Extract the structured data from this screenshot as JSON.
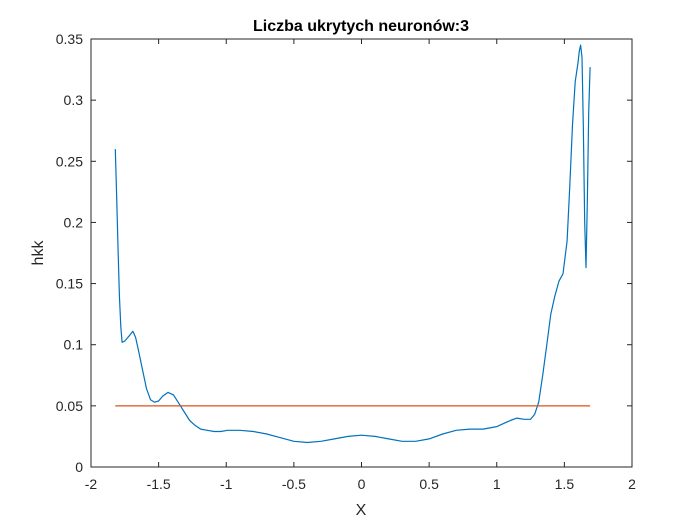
{
  "chart_data": {
    "type": "line",
    "title": "Liczba ukrytych neuronów:3",
    "xlabel": "X",
    "ylabel": "hkk",
    "xlim": [
      -2,
      2
    ],
    "ylim": [
      0,
      0.35
    ],
    "xticks": [
      "-2",
      "-1.5",
      "-1",
      "-0.5",
      "0",
      "0.5",
      "1",
      "1.5",
      "2"
    ],
    "yticks": [
      "0",
      "0.05",
      "0.1",
      "0.15",
      "0.2",
      "0.25",
      "0.3",
      "0.35"
    ],
    "grid": false,
    "legend": "none",
    "series": [
      {
        "color": "#0072BD",
        "x": [
          -1.82,
          -1.81,
          -1.8,
          -1.79,
          -1.78,
          -1.77,
          -1.75,
          -1.72,
          -1.69,
          -1.67,
          -1.65,
          -1.62,
          -1.59,
          -1.56,
          -1.53,
          -1.5,
          -1.47,
          -1.43,
          -1.39,
          -1.35,
          -1.31,
          -1.27,
          -1.23,
          -1.19,
          -1.14,
          -1.09,
          -1.04,
          -0.99,
          -0.9,
          -0.8,
          -0.7,
          -0.6,
          -0.5,
          -0.4,
          -0.3,
          -0.2,
          -0.1,
          0.0,
          0.1,
          0.2,
          0.3,
          0.4,
          0.5,
          0.6,
          0.7,
          0.8,
          0.9,
          1.0,
          1.1,
          1.15,
          1.2,
          1.25,
          1.28,
          1.31,
          1.34,
          1.37,
          1.4,
          1.43,
          1.46,
          1.49,
          1.52,
          1.54,
          1.56,
          1.58,
          1.6,
          1.61,
          1.62,
          1.63,
          1.64,
          1.65,
          1.66,
          1.67,
          1.68,
          1.69
        ],
        "y": [
          0.26,
          0.22,
          0.18,
          0.14,
          0.115,
          0.102,
          0.103,
          0.107,
          0.111,
          0.106,
          0.096,
          0.08,
          0.064,
          0.055,
          0.053,
          0.054,
          0.058,
          0.061,
          0.059,
          0.052,
          0.045,
          0.038,
          0.034,
          0.031,
          0.03,
          0.029,
          0.029,
          0.03,
          0.03,
          0.029,
          0.027,
          0.024,
          0.021,
          0.02,
          0.021,
          0.023,
          0.025,
          0.026,
          0.025,
          0.023,
          0.021,
          0.021,
          0.023,
          0.027,
          0.03,
          0.031,
          0.031,
          0.033,
          0.038,
          0.04,
          0.039,
          0.039,
          0.043,
          0.053,
          0.075,
          0.1,
          0.125,
          0.14,
          0.152,
          0.158,
          0.185,
          0.23,
          0.28,
          0.315,
          0.33,
          0.34,
          0.345,
          0.335,
          0.28,
          0.2,
          0.163,
          0.22,
          0.29,
          0.327
        ]
      },
      {
        "color": "#D95319",
        "x": [
          -1.82,
          1.69
        ],
        "y": [
          0.05,
          0.05
        ]
      }
    ]
  }
}
